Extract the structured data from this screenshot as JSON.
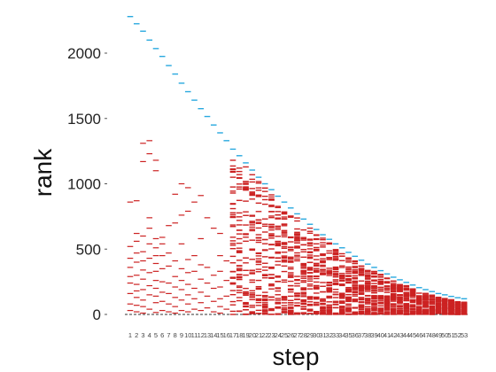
{
  "chart_data": {
    "type": "scatter",
    "xlabel": "step",
    "ylabel": "rank",
    "x_ticks": [
      1,
      2,
      3,
      4,
      5,
      6,
      7,
      8,
      9,
      10,
      11,
      12,
      13,
      14,
      15,
      16,
      17,
      18,
      19,
      20,
      21,
      22,
      23,
      24,
      25,
      26,
      27,
      28,
      29,
      30,
      31,
      32,
      33,
      34,
      35,
      36,
      37,
      38,
      39,
      40,
      41,
      42,
      43,
      44,
      45,
      46,
      47,
      48,
      49,
      50,
      51,
      52,
      53
    ],
    "y_ticks": [
      0,
      500,
      1000,
      1500,
      2000
    ],
    "xlim": [
      1,
      53
    ],
    "ylim": [
      0,
      2300
    ],
    "grid": false,
    "legend": "none",
    "baseline": 0,
    "colors": {
      "max_rank": "#29a9df",
      "ranks": "#cc2222",
      "baseline": "#333333"
    },
    "series": [
      {
        "marker": "dash",
        "color": "#29a9df",
        "x": [
          1,
          2,
          3,
          4,
          5,
          6,
          7,
          8,
          9,
          10,
          11,
          12,
          13,
          14,
          15,
          16,
          17,
          18,
          19,
          20,
          21,
          22,
          23,
          24,
          25,
          26,
          27,
          28,
          29,
          30,
          31,
          32,
          33,
          34,
          35,
          36,
          37,
          38,
          39,
          40,
          41,
          42,
          43,
          44,
          45,
          46,
          47,
          48,
          49,
          50,
          51,
          52,
          53
        ],
        "y": [
          2280,
          2225,
          2168,
          2100,
          2035,
          1975,
          1905,
          1840,
          1770,
          1705,
          1640,
          1575,
          1515,
          1450,
          1390,
          1330,
          1265,
          1215,
          1160,
          1105,
          1050,
          1000,
          955,
          905,
          860,
          815,
          770,
          730,
          690,
          650,
          610,
          575,
          540,
          510,
          475,
          445,
          415,
          385,
          360,
          335,
          310,
          285,
          265,
          245,
          225,
          205,
          190,
          175,
          160,
          150,
          138,
          128,
          120
        ]
      },
      {
        "marker": "dash",
        "color": "#cc2222",
        "x": [
          1,
          1,
          1,
          1,
          1,
          1,
          1,
          1,
          1,
          2,
          2,
          2,
          2,
          2,
          2,
          2,
          2,
          2,
          2,
          2,
          3,
          3,
          3,
          3,
          3,
          3,
          3,
          3,
          3,
          3,
          3,
          4,
          4,
          4,
          4,
          4,
          4,
          4,
          4,
          4,
          4,
          5,
          5,
          5,
          5,
          5,
          5,
          5,
          5,
          5,
          5,
          5,
          5,
          6,
          6,
          6,
          6,
          6,
          6,
          6,
          6,
          7,
          7,
          7,
          7,
          7,
          7,
          7,
          8,
          8,
          8,
          8,
          8,
          8,
          8,
          8,
          9,
          9,
          9,
          9,
          9,
          9,
          9,
          9,
          10,
          10,
          10,
          10,
          10,
          10,
          10,
          10,
          11,
          11,
          11,
          11,
          11,
          11,
          12,
          12,
          12,
          12,
          12,
          12,
          12,
          13,
          13,
          13,
          13,
          13,
          14,
          14,
          14,
          14,
          14,
          15,
          15,
          15,
          15,
          15,
          15,
          15,
          16,
          16,
          16,
          16
        ],
        "y": [
          30,
          80,
          160,
          240,
          290,
          360,
          430,
          520,
          860,
          20,
          70,
          130,
          180,
          230,
          300,
          400,
          470,
          560,
          620,
          870,
          10,
          60,
          110,
          190,
          270,
          340,
          410,
          480,
          600,
          1170,
          1310,
          40,
          150,
          220,
          320,
          430,
          540,
          660,
          740,
          1330,
          1230,
          15,
          90,
          140,
          200,
          260,
          330,
          390,
          450,
          510,
          580,
          1100,
          1180,
          30,
          100,
          170,
          250,
          350,
          450,
          540,
          590,
          20,
          80,
          160,
          240,
          370,
          470,
          680,
          10,
          60,
          130,
          210,
          290,
          410,
          700,
          920,
          30,
          110,
          190,
          260,
          350,
          540,
          760,
          1000,
          20,
          80,
          150,
          230,
          320,
          420,
          790,
          970,
          40,
          120,
          200,
          330,
          450,
          860,
          30,
          90,
          170,
          270,
          380,
          580,
          910,
          50,
          140,
          240,
          360,
          740,
          20,
          100,
          200,
          300,
          660,
          10,
          60,
          120,
          210,
          330,
          450,
          620,
          40,
          140,
          260,
          410
        ]
      }
    ],
    "dense_region": {
      "marker": "dash",
      "color": "#cc2222",
      "x_range": [
        17,
        53
      ],
      "y_min": 0,
      "y_max_follows_series": 0,
      "outliers": [
        {
          "x": 17,
          "y": 1180
        },
        {
          "x": 17,
          "y": 1050
        },
        {
          "x": 18,
          "y": 1120
        },
        {
          "x": 18,
          "y": 960
        }
      ]
    }
  }
}
